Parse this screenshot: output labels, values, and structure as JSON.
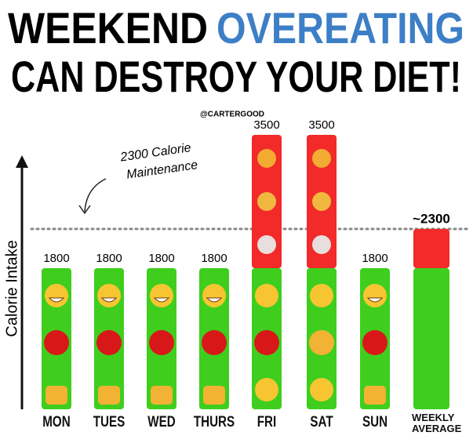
{
  "chart_data": {
    "type": "stacked-bar",
    "title": [
      "WEEKEND",
      "OVEREATING",
      "CAN DESTROY YOUR DIET!"
    ],
    "title_highlight_color": "#3d7fc6",
    "credit": "@CARTERGOOD",
    "y_label": "Calorie Intake",
    "annotation": [
      "2300 Calorie",
      "Maintenance"
    ],
    "reference_line": 2300,
    "categories": [
      "MON",
      "TUES",
      "WED",
      "THURS",
      "FRI",
      "SAT",
      "SUN",
      "WEEKLY AVERAGE"
    ],
    "series": [
      {
        "color": "#3fce1e",
        "values": [
          1800,
          1800,
          1800,
          1800,
          1800,
          1800,
          1800,
          1800
        ]
      },
      {
        "color": "#f22a2a",
        "values": [
          null,
          null,
          null,
          null,
          1700,
          1700,
          null,
          500
        ]
      }
    ],
    "totals": [
      1800,
      1800,
      1800,
      1800,
      3500,
      3500,
      1800,
      2300
    ],
    "value_labels": [
      "1800",
      "1800",
      "1800",
      "1800",
      "3500",
      "3500",
      "1800",
      "~2300"
    ],
    "ylim": [
      0,
      3700
    ]
  }
}
